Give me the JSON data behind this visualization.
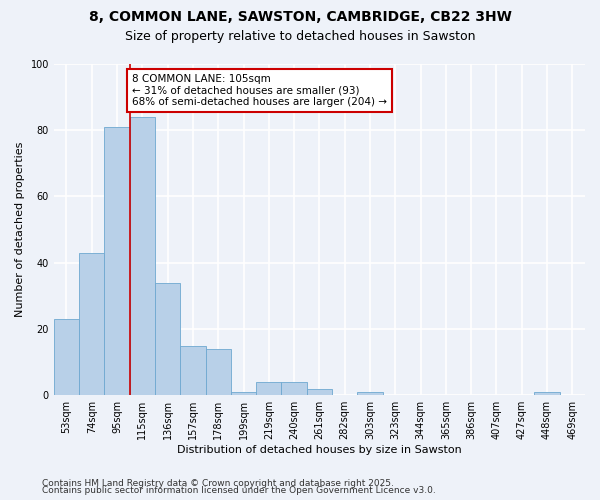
{
  "title1": "8, COMMON LANE, SAWSTON, CAMBRIDGE, CB22 3HW",
  "title2": "Size of property relative to detached houses in Sawston",
  "xlabel": "Distribution of detached houses by size in Sawston",
  "ylabel": "Number of detached properties",
  "categories": [
    "53sqm",
    "74sqm",
    "95sqm",
    "115sqm",
    "136sqm",
    "157sqm",
    "178sqm",
    "199sqm",
    "219sqm",
    "240sqm",
    "261sqm",
    "282sqm",
    "303sqm",
    "323sqm",
    "344sqm",
    "365sqm",
    "386sqm",
    "407sqm",
    "427sqm",
    "448sqm",
    "469sqm"
  ],
  "values": [
    23,
    43,
    81,
    84,
    34,
    15,
    14,
    1,
    4,
    4,
    2,
    0,
    1,
    0,
    0,
    0,
    0,
    0,
    0,
    1,
    0
  ],
  "bar_color": "#b8d0e8",
  "bar_edge_color": "#6ea8d0",
  "red_line_x": 2.5,
  "annotation_text": "8 COMMON LANE: 105sqm\n← 31% of detached houses are smaller (93)\n68% of semi-detached houses are larger (204) →",
  "annotation_box_color": "#ffffff",
  "annotation_border_color": "#cc0000",
  "red_line_color": "#cc0000",
  "ylim": [
    0,
    100
  ],
  "yticks": [
    0,
    20,
    40,
    60,
    80,
    100
  ],
  "footer1": "Contains HM Land Registry data © Crown copyright and database right 2025.",
  "footer2": "Contains public sector information licensed under the Open Government Licence v3.0.",
  "bg_color": "#eef2f9",
  "grid_color": "#ffffff",
  "title_fontsize": 10,
  "subtitle_fontsize": 9,
  "axis_label_fontsize": 8,
  "tick_fontsize": 7,
  "annotation_fontsize": 7.5,
  "footer_fontsize": 6.5
}
